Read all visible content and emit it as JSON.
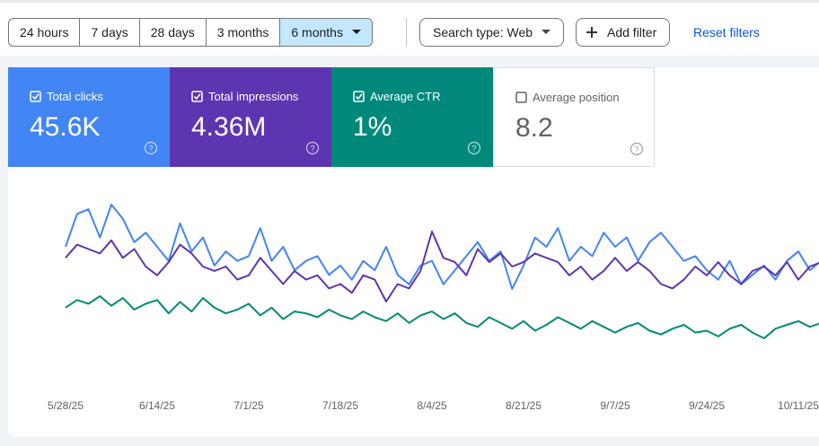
{
  "time_ranges": {
    "options": [
      "24 hours",
      "7 days",
      "28 days",
      "3 months",
      "6 months"
    ],
    "selected": 4
  },
  "search_type": "Search type: Web",
  "add_filter": "Add filter",
  "reset_filters": "Reset filters",
  "help_icon": "?",
  "cards": [
    {
      "label": "Total clicks",
      "value": "45.6K",
      "checked": true,
      "color": "#4285f4"
    },
    {
      "label": "Total impressions",
      "value": "4.36M",
      "checked": true,
      "color": "#5e35b1"
    },
    {
      "label": "Average CTR",
      "value": "1%",
      "checked": true,
      "color": "#00897b"
    },
    {
      "label": "Average position",
      "value": "8.2",
      "checked": false,
      "color": "#e8710a"
    }
  ],
  "chart_data": {
    "type": "line",
    "categories": [
      "5/28/25",
      null,
      null,
      null,
      null,
      null,
      null,
      null,
      "6/14/25",
      null,
      null,
      null,
      null,
      null,
      null,
      null,
      "7/1/25",
      null,
      null,
      null,
      null,
      null,
      null,
      null,
      "7/18/25",
      null,
      null,
      null,
      null,
      null,
      null,
      null,
      "8/4/25",
      null,
      null,
      null,
      null,
      null,
      null,
      null,
      "8/21/25",
      null,
      null,
      null,
      null,
      null,
      null,
      null,
      "9/7/25",
      null,
      null,
      null,
      null,
      null,
      null,
      null,
      "9/24/25",
      null,
      null,
      null,
      null,
      null,
      null,
      null,
      "10/11/25",
      null,
      null
    ],
    "series": [
      {
        "color": "#4285f4",
        "values": [
          330,
          400,
          410,
          350,
          420,
          390,
          340,
          360,
          330,
          300,
          380,
          320,
          350,
          290,
          320,
          300,
          310,
          370,
          300,
          330,
          280,
          300,
          310,
          270,
          290,
          260,
          300,
          280,
          330,
          270,
          250,
          290,
          300,
          250,
          280,
          310,
          340,
          300,
          320,
          240,
          290,
          350,
          330,
          370,
          300,
          330,
          310,
          360,
          330,
          350,
          300,
          340,
          360,
          330,
          300,
          310,
          280,
          260,
          300,
          250,
          270,
          290,
          260,
          300,
          320,
          280,
          300
        ]
      },
      {
        "color": "#5e35b1",
        "values": [
          30000,
          31500,
          31000,
          30500,
          32000,
          30000,
          31000,
          29000,
          28000,
          29500,
          31500,
          30500,
          29000,
          28500,
          29000,
          27500,
          28000,
          30000,
          28500,
          27000,
          28500,
          27500,
          28000,
          26500,
          27000,
          26000,
          28000,
          27500,
          25000,
          27000,
          26500,
          28500,
          33000,
          30000,
          29500,
          28000,
          31000,
          29500,
          30500,
          29000,
          29500,
          30500,
          30000,
          29500,
          28000,
          29000,
          27500,
          28500,
          30000,
          28500,
          29500,
          28500,
          27000,
          26500,
          27500,
          29000,
          28000,
          29500,
          28000,
          27000,
          28500,
          29000,
          28000,
          29500,
          27500,
          29000,
          29500
        ]
      },
      {
        "color": "#00897b",
        "values": [
          1.08,
          1.12,
          1.1,
          1.14,
          1.09,
          1.13,
          1.07,
          1.1,
          1.12,
          1.05,
          1.11,
          1.06,
          1.13,
          1.08,
          1.05,
          1.07,
          1.1,
          1.04,
          1.08,
          1.02,
          1.06,
          1.05,
          1.03,
          1.07,
          1.04,
          1.02,
          1.06,
          1.03,
          1.01,
          1.05,
          1.0,
          1.04,
          1.06,
          1.02,
          1.05,
          1.0,
          0.98,
          1.03,
          1.0,
          0.97,
          1.01,
          0.96,
          0.99,
          1.03,
          1.0,
          0.97,
          1.01,
          0.98,
          0.95,
          0.98,
          1.0,
          0.96,
          0.94,
          0.97,
          0.99,
          0.95,
          0.96,
          0.93,
          0.97,
          0.99,
          0.95,
          0.92,
          0.97,
          0.99,
          1.01,
          0.98,
          1.0
        ]
      }
    ]
  }
}
